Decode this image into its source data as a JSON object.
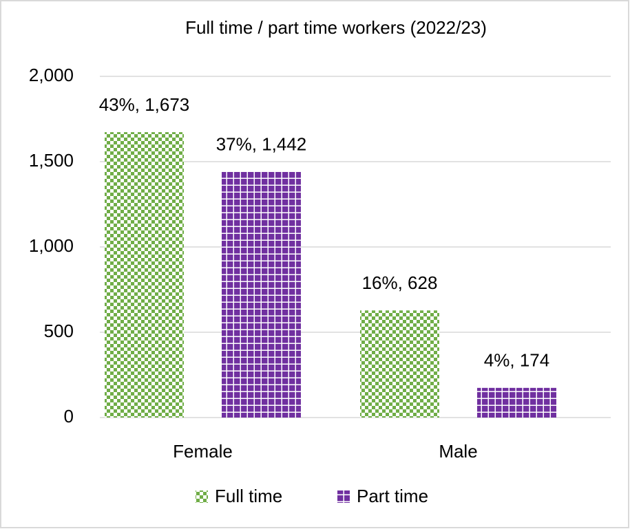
{
  "chart_data": {
    "type": "bar",
    "title": "Full time / part time workers (2022/23)",
    "categories": [
      "Female",
      "Male"
    ],
    "series": [
      {
        "name": "Full time",
        "color": "#70ad47",
        "values": [
          1673,
          628
        ],
        "value_labels": [
          "43%, 1,673",
          "16%, 628"
        ]
      },
      {
        "name": "Part time",
        "color": "#7030a0",
        "values": [
          1442,
          174
        ],
        "value_labels": [
          "37%, 1,442",
          "4%, 174"
        ]
      }
    ],
    "ylim": [
      0,
      2000
    ],
    "yticks": [
      0,
      500,
      {
        "value": 1000,
        "label": "1,000"
      },
      {
        "value": 1500,
        "label": "1,500"
      },
      {
        "value": 2000,
        "label": "2,000"
      }
    ],
    "grid": true,
    "legend": "bottom"
  }
}
